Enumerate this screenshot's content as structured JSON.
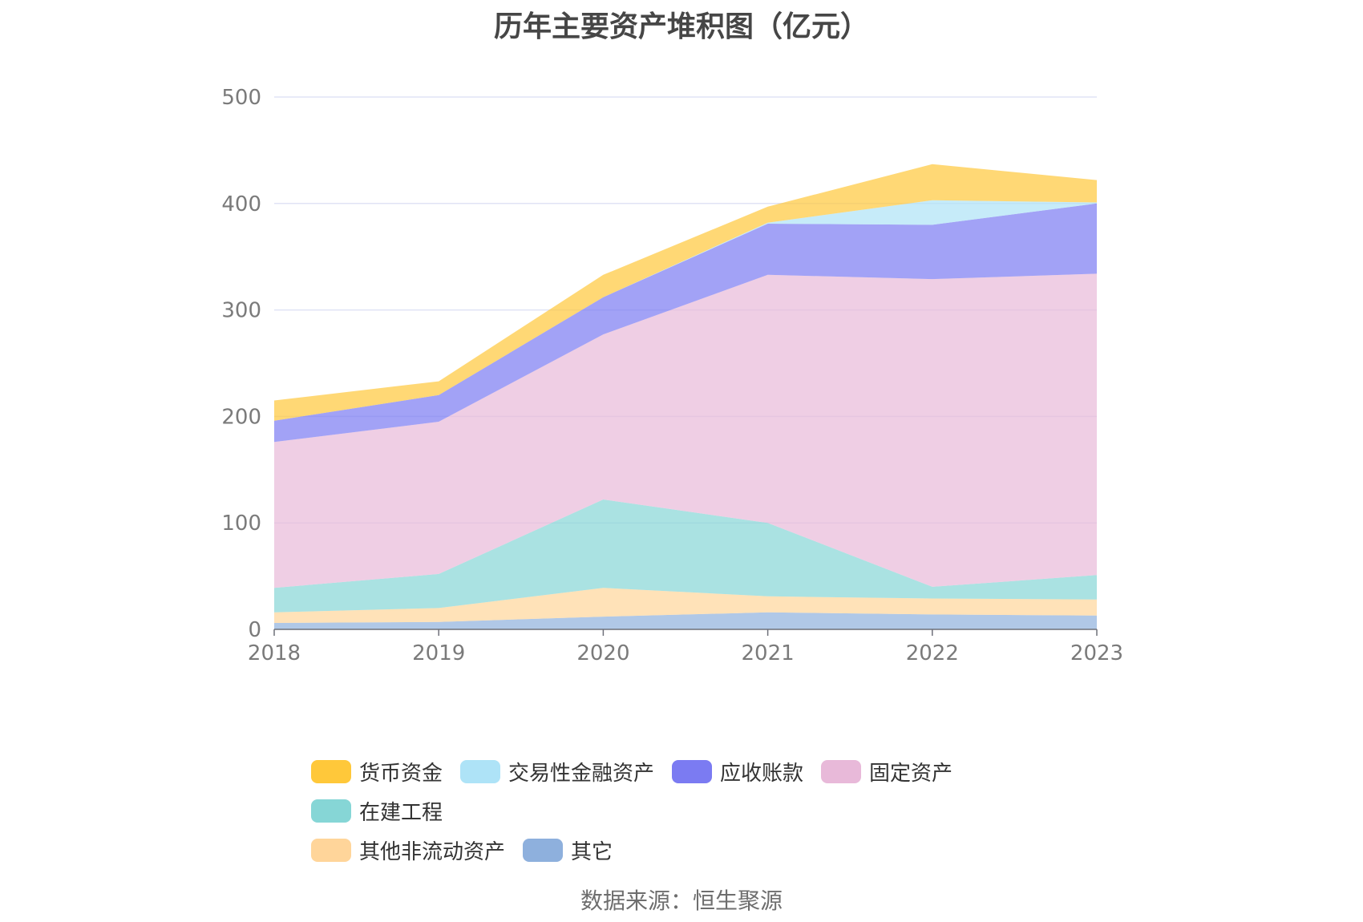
{
  "title": "历年主要资产堆积图（亿元）",
  "source_note": "数据来源：恒生聚源",
  "chart_data": {
    "type": "area",
    "stacked": true,
    "title": "历年主要资产堆积图（亿元）",
    "x": [
      "2018",
      "2019",
      "2020",
      "2021",
      "2022",
      "2023"
    ],
    "ylim": [
      0,
      500
    ],
    "yticks": [
      "0",
      "100",
      "200",
      "300",
      "400",
      "500"
    ],
    "grid": true,
    "legend_position": "bottom",
    "series": [
      {
        "name": "其它",
        "color": "#8eb0dd",
        "values": [
          6,
          7,
          12,
          16,
          14,
          13
        ]
      },
      {
        "name": "其他非流动资产",
        "color": "#ffd59a",
        "values": [
          10,
          13,
          27,
          15,
          15,
          15
        ]
      },
      {
        "name": "在建工程",
        "color": "#86d6d6",
        "values": [
          23,
          32,
          83,
          69,
          11,
          23
        ]
      },
      {
        "name": "固定资产",
        "color": "#e8b9d9",
        "values": [
          137,
          143,
          155,
          233,
          289,
          283
        ]
      },
      {
        "name": "应收账款",
        "color": "#7b7bf2",
        "values": [
          20,
          25,
          35,
          48,
          51,
          66
        ]
      },
      {
        "name": "交易性金融资产",
        "color": "#aee3f7",
        "values": [
          0,
          0,
          0,
          1,
          23,
          1
        ]
      },
      {
        "name": "货币资金",
        "color": "#ffc83a",
        "values": [
          19,
          13,
          21,
          15,
          34,
          21
        ]
      }
    ],
    "legend_order": [
      "货币资金",
      "交易性金融资产",
      "应收账款",
      "固定资产",
      "在建工程",
      "其他非流动资产",
      "其它"
    ]
  }
}
